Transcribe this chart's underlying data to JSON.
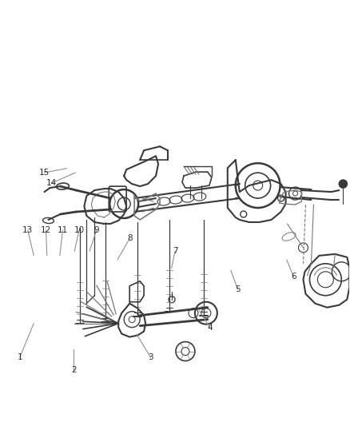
{
  "bg_color": "#ffffff",
  "line_color": "#3a3a3a",
  "gray_color": "#787878",
  "label_color": "#2a2a2a",
  "callout_color": "#909090",
  "fig_width": 4.38,
  "fig_height": 5.33,
  "dpi": 100,
  "callouts": {
    "1": {
      "lp": [
        0.055,
        0.84
      ],
      "tp": [
        0.095,
        0.76
      ]
    },
    "2": {
      "lp": [
        0.21,
        0.87
      ],
      "tp": [
        0.21,
        0.82
      ]
    },
    "3": {
      "lp": [
        0.43,
        0.84
      ],
      "tp": [
        0.39,
        0.785
      ]
    },
    "4": {
      "lp": [
        0.6,
        0.77
      ],
      "tp": [
        0.57,
        0.73
      ]
    },
    "5": {
      "lp": [
        0.68,
        0.68
      ],
      "tp": [
        0.66,
        0.635
      ]
    },
    "6": {
      "lp": [
        0.84,
        0.65
      ],
      "tp": [
        0.82,
        0.61
      ]
    },
    "7": {
      "lp": [
        0.5,
        0.59
      ],
      "tp": [
        0.49,
        0.63
      ]
    },
    "8": {
      "lp": [
        0.37,
        0.56
      ],
      "tp": [
        0.335,
        0.61
      ]
    },
    "9": {
      "lp": [
        0.275,
        0.54
      ],
      "tp": [
        0.255,
        0.59
      ]
    },
    "10": {
      "lp": [
        0.225,
        0.54
      ],
      "tp": [
        0.212,
        0.59
      ]
    },
    "11": {
      "lp": [
        0.178,
        0.54
      ],
      "tp": [
        0.17,
        0.6
      ]
    },
    "12": {
      "lp": [
        0.13,
        0.54
      ],
      "tp": [
        0.133,
        0.6
      ]
    },
    "13": {
      "lp": [
        0.078,
        0.54
      ],
      "tp": [
        0.095,
        0.6
      ]
    },
    "14": {
      "lp": [
        0.145,
        0.43
      ],
      "tp": [
        0.215,
        0.405
      ]
    },
    "15": {
      "lp": [
        0.125,
        0.405
      ],
      "tp": [
        0.19,
        0.395
      ]
    }
  }
}
